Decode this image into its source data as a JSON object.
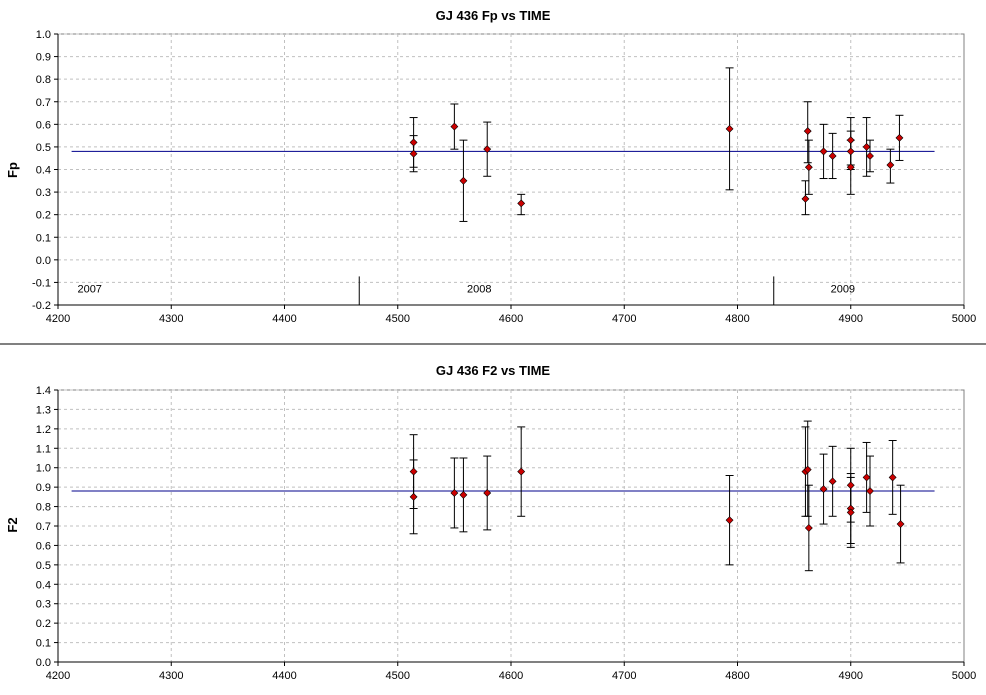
{
  "chart_data": [
    {
      "type": "scatter",
      "title": "GJ 436 Fp vs TIME",
      "xlabel": "",
      "ylabel": "Fp",
      "xlim": [
        4200,
        5000
      ],
      "ylim": [
        -0.2,
        1.0
      ],
      "xticks": [
        4200,
        4300,
        4400,
        4500,
        4600,
        4700,
        4800,
        4900,
        5000
      ],
      "yticks": [
        -0.2,
        -0.1,
        0.0,
        0.1,
        0.2,
        0.3,
        0.4,
        0.5,
        0.6,
        0.7,
        0.8,
        0.9,
        1.0
      ],
      "ytick_labels": [
        "-0.2",
        "-0.1",
        "0.0",
        "0.1",
        "0.2",
        "0.3",
        "0.4",
        "0.5",
        "0.6",
        "0.7",
        "0.8",
        "0.9",
        "1.0"
      ],
      "grid": true,
      "mean_line": {
        "y": 0.48,
        "x": [
          4212,
          4974
        ],
        "color": "#00008b"
      },
      "year_labels": [
        {
          "x": 4228,
          "text": "2007"
        },
        {
          "x": 4572,
          "text": "2008"
        },
        {
          "x": 4893,
          "text": "2009"
        }
      ],
      "year_dividers": [
        4466,
        4832
      ],
      "marker_color": "#cc0000",
      "points": [
        {
          "x": 4514,
          "y": 0.52,
          "yerr_low": 0.41,
          "yerr_high": 0.63
        },
        {
          "x": 4514,
          "y": 0.47,
          "yerr_low": 0.39,
          "yerr_high": 0.55
        },
        {
          "x": 4550,
          "y": 0.59,
          "yerr_low": 0.49,
          "yerr_high": 0.69
        },
        {
          "x": 4558,
          "y": 0.35,
          "yerr_low": 0.17,
          "yerr_high": 0.53
        },
        {
          "x": 4579,
          "y": 0.49,
          "yerr_low": 0.37,
          "yerr_high": 0.61
        },
        {
          "x": 4609,
          "y": 0.25,
          "yerr_low": 0.2,
          "yerr_high": 0.29
        },
        {
          "x": 4793,
          "y": 0.58,
          "yerr_low": 0.31,
          "yerr_high": 0.85
        },
        {
          "x": 4860,
          "y": 0.27,
          "yerr_low": 0.2,
          "yerr_high": 0.35
        },
        {
          "x": 4862,
          "y": 0.57,
          "yerr_low": 0.43,
          "yerr_high": 0.7
        },
        {
          "x": 4863,
          "y": 0.41,
          "yerr_low": 0.29,
          "yerr_high": 0.53
        },
        {
          "x": 4876,
          "y": 0.48,
          "yerr_low": 0.36,
          "yerr_high": 0.6
        },
        {
          "x": 4884,
          "y": 0.46,
          "yerr_low": 0.36,
          "yerr_high": 0.56
        },
        {
          "x": 4900,
          "y": 0.53,
          "yerr_low": 0.42,
          "yerr_high": 0.63
        },
        {
          "x": 4900,
          "y": 0.48,
          "yerr_low": 0.4,
          "yerr_high": 0.57
        },
        {
          "x": 4900,
          "y": 0.41,
          "yerr_low": 0.29,
          "yerr_high": 0.53
        },
        {
          "x": 4914,
          "y": 0.5,
          "yerr_low": 0.37,
          "yerr_high": 0.63
        },
        {
          "x": 4917,
          "y": 0.46,
          "yerr_low": 0.39,
          "yerr_high": 0.53
        },
        {
          "x": 4935,
          "y": 0.42,
          "yerr_low": 0.34,
          "yerr_high": 0.49
        },
        {
          "x": 4943,
          "y": 0.54,
          "yerr_low": 0.44,
          "yerr_high": 0.64
        }
      ]
    },
    {
      "type": "scatter",
      "title": "GJ 436 F2 vs TIME",
      "xlabel": "",
      "ylabel": "F2",
      "xlim": [
        4200,
        5000
      ],
      "ylim": [
        0.0,
        1.4
      ],
      "xticks": [
        4200,
        4300,
        4400,
        4500,
        4600,
        4700,
        4800,
        4900,
        5000
      ],
      "yticks": [
        0.0,
        0.1,
        0.2,
        0.3,
        0.4,
        0.5,
        0.6,
        0.7,
        0.8,
        0.9,
        1.0,
        1.1,
        1.2,
        1.3,
        1.4
      ],
      "ytick_labels": [
        "0.0",
        "0.1",
        "0.2",
        "0.3",
        "0.4",
        "0.5",
        "0.6",
        "0.7",
        "0.8",
        "0.9",
        "1.0",
        "1.1",
        "1.2",
        "1.3",
        "1.4"
      ],
      "grid": true,
      "mean_line": {
        "y": 0.88,
        "x": [
          4212,
          4974
        ],
        "color": "#00008b"
      },
      "year_labels": [],
      "year_dividers": [],
      "marker_color": "#cc0000",
      "points": [
        {
          "x": 4514,
          "y": 0.98,
          "yerr_low": 0.79,
          "yerr_high": 1.17
        },
        {
          "x": 4514,
          "y": 0.85,
          "yerr_low": 0.66,
          "yerr_high": 1.04
        },
        {
          "x": 4550,
          "y": 0.87,
          "yerr_low": 0.69,
          "yerr_high": 1.05
        },
        {
          "x": 4558,
          "y": 0.86,
          "yerr_low": 0.67,
          "yerr_high": 1.05
        },
        {
          "x": 4579,
          "y": 0.87,
          "yerr_low": 0.68,
          "yerr_high": 1.06
        },
        {
          "x": 4609,
          "y": 0.98,
          "yerr_low": 0.75,
          "yerr_high": 1.21
        },
        {
          "x": 4793,
          "y": 0.73,
          "yerr_low": 0.5,
          "yerr_high": 0.96
        },
        {
          "x": 4860,
          "y": 0.98,
          "yerr_low": 0.75,
          "yerr_high": 1.21
        },
        {
          "x": 4862,
          "y": 0.99,
          "yerr_low": 0.75,
          "yerr_high": 1.24
        },
        {
          "x": 4863,
          "y": 0.69,
          "yerr_low": 0.47,
          "yerr_high": 0.91
        },
        {
          "x": 4876,
          "y": 0.89,
          "yerr_low": 0.71,
          "yerr_high": 1.07
        },
        {
          "x": 4884,
          "y": 0.93,
          "yerr_low": 0.75,
          "yerr_high": 1.11
        },
        {
          "x": 4900,
          "y": 0.91,
          "yerr_low": 0.72,
          "yerr_high": 1.1
        },
        {
          "x": 4900,
          "y": 0.79,
          "yerr_low": 0.61,
          "yerr_high": 0.97
        },
        {
          "x": 4900,
          "y": 0.77,
          "yerr_low": 0.59,
          "yerr_high": 0.95
        },
        {
          "x": 4914,
          "y": 0.95,
          "yerr_low": 0.77,
          "yerr_high": 1.13
        },
        {
          "x": 4917,
          "y": 0.88,
          "yerr_low": 0.7,
          "yerr_high": 1.06
        },
        {
          "x": 4937,
          "y": 0.95,
          "yerr_low": 0.76,
          "yerr_high": 1.14
        },
        {
          "x": 4944,
          "y": 0.71,
          "yerr_low": 0.51,
          "yerr_high": 0.91
        }
      ]
    }
  ]
}
